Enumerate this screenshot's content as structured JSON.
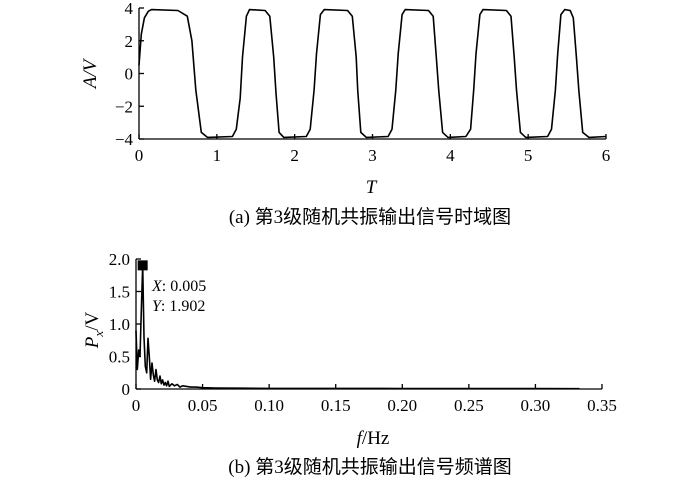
{
  "chart_data": [
    {
      "type": "line",
      "panel": "a",
      "caption": "(a) 第3级随机共振输出信号时域图",
      "xlabel": "T",
      "ylabel": "A/V",
      "xlim": [
        0,
        6
      ],
      "ylim": [
        -4,
        4
      ],
      "xticks": [
        "0",
        "1",
        "2",
        "3",
        "4",
        "5",
        "6"
      ],
      "yticks": [
        "4",
        "2",
        "0",
        "−2",
        "−4"
      ],
      "x": [
        0,
        0.03,
        0.07,
        0.12,
        0.16,
        0.5,
        0.62,
        0.68,
        0.73,
        0.8,
        0.88,
        1.2,
        1.25,
        1.3,
        1.33,
        1.38,
        1.42,
        1.62,
        1.68,
        1.73,
        1.76,
        1.8,
        1.86,
        2.15,
        2.2,
        2.25,
        2.28,
        2.33,
        2.38,
        2.68,
        2.74,
        2.79,
        2.81,
        2.85,
        2.92,
        3.2,
        3.25,
        3.3,
        3.33,
        3.38,
        3.42,
        3.72,
        3.78,
        3.82,
        3.85,
        3.9,
        3.97,
        4.2,
        4.26,
        4.3,
        4.33,
        4.38,
        4.42,
        4.72,
        4.78,
        4.82,
        4.85,
        4.9,
        4.97,
        5.25,
        5.3,
        5.35,
        5.38,
        5.42,
        5.47,
        5.54,
        5.58,
        5.62,
        5.65,
        5.7,
        5.78,
        6.0
      ],
      "y": [
        0.5,
        2.4,
        3.4,
        3.8,
        3.9,
        3.85,
        3.5,
        2.0,
        -1.0,
        -3.6,
        -3.9,
        -3.85,
        -3.4,
        -1.5,
        1.0,
        3.5,
        3.9,
        3.85,
        3.5,
        1.0,
        -1.2,
        -3.6,
        -3.9,
        -3.85,
        -3.4,
        -1.0,
        1.2,
        3.6,
        3.9,
        3.85,
        3.5,
        1.0,
        -1.0,
        -3.6,
        -3.9,
        -3.85,
        -3.4,
        -1.0,
        1.2,
        3.6,
        3.9,
        3.85,
        3.5,
        1.0,
        -1.0,
        -3.6,
        -3.9,
        -3.85,
        -3.4,
        -1.0,
        1.2,
        3.6,
        3.9,
        3.85,
        3.5,
        1.0,
        -1.0,
        -3.6,
        -3.9,
        -3.85,
        -3.4,
        -1.0,
        1.2,
        3.6,
        3.9,
        3.85,
        3.4,
        1.0,
        -1.0,
        -3.6,
        -3.9,
        -3.85
      ]
    },
    {
      "type": "line",
      "panel": "b",
      "caption": "(b) 第3级随机共振输出信号频谱图",
      "xlabel": "f/Hz",
      "ylabel": "P_x/V",
      "xlim": [
        0,
        0.35
      ],
      "ylim": [
        0,
        2.0
      ],
      "xticks": [
        "0",
        "0.05",
        "0.10",
        "0.15",
        "0.20",
        "0.25",
        "0.30",
        "0.35"
      ],
      "yticks": [
        "2.0",
        "1.5",
        "1.0",
        "0.5",
        "0"
      ],
      "x": [
        0,
        0.001,
        0.002,
        0.003,
        0.004,
        0.005,
        0.006,
        0.007,
        0.008,
        0.009,
        0.01,
        0.011,
        0.012,
        0.013,
        0.014,
        0.015,
        0.016,
        0.017,
        0.018,
        0.019,
        0.02,
        0.021,
        0.022,
        0.023,
        0.024,
        0.025,
        0.027,
        0.029,
        0.031,
        0.033,
        0.035,
        0.038,
        0.041,
        0.045,
        0.05,
        0.06,
        0.08,
        0.1,
        0.15,
        0.2,
        0.25,
        0.3,
        0.333
      ],
      "y": [
        0.9,
        0.3,
        0.6,
        0.5,
        1.2,
        1.902,
        0.8,
        0.35,
        0.25,
        0.78,
        0.5,
        0.15,
        0.4,
        0.22,
        0.12,
        0.3,
        0.14,
        0.1,
        0.2,
        0.08,
        0.14,
        0.06,
        0.1,
        0.05,
        0.12,
        0.04,
        0.08,
        0.05,
        0.07,
        0.03,
        0.05,
        0.04,
        0.03,
        0.03,
        0.02,
        0.015,
        0.012,
        0.01,
        0.01,
        0.008,
        0.008,
        0.006,
        0.005
      ],
      "annotation": {
        "x_label": "X",
        "x_value": ": 0.005",
        "y_label": "Y",
        "y_value": ": 1.902",
        "x": 0.005,
        "y": 1.902
      }
    }
  ]
}
